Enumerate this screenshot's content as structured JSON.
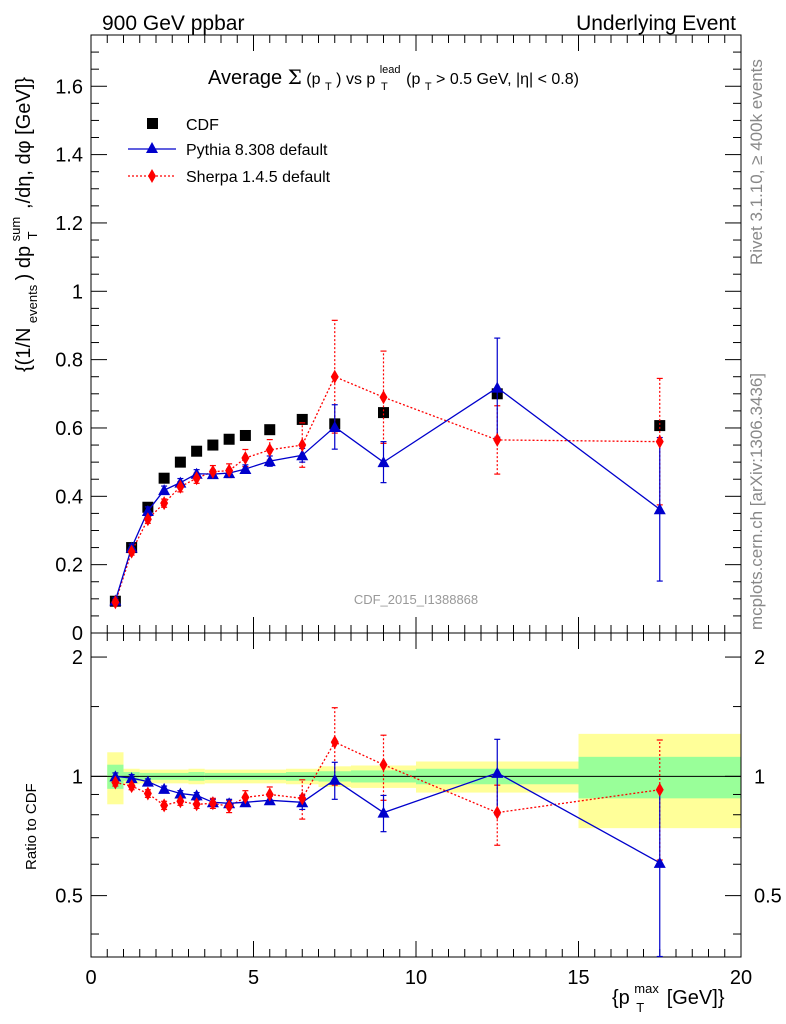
{
  "header": {
    "left": "900 GeV ppbar",
    "right": "Underlying Event"
  },
  "side_labels": {
    "rivet": "Rivet 3.1.10, ≥ 400k events",
    "mcplots": "mcplots.cern.ch [arXiv:1306.3436]"
  },
  "watermark": "CDF_2015_I1388868",
  "plot_title": {
    "prefix": "Average ",
    "sigma": "Σ",
    "pt_open": "(p",
    "pt_sub": "T",
    "pt_close": ")",
    "vs": " vs p",
    "lead_sup": "lead",
    "lead_sub": "T",
    "cut_open": " (p",
    "cut_sub": "T",
    "cut_rest": " > 0.5 GeV, |η| < 0.8)"
  },
  "y_label_main": {
    "p1": "{(1/N",
    "sub_events": "events",
    "p2": ") dp",
    "sup_sum": "sum",
    "sub_T": "T",
    "p3": ",/dη, dφ [GeV]}"
  },
  "y_label_ratio": "Ratio to CDF",
  "x_label": {
    "p1": "{p",
    "sup": "max",
    "sub": "T",
    "p2": " [GeV]}"
  },
  "colors": {
    "cdf": "#000000",
    "pythia": "#0000cc",
    "sherpa": "#ff0000",
    "band_inner": "#99ff99",
    "band_outer": "#ffff99",
    "watermark": "#999999",
    "side_text": "#888888"
  },
  "chart_data": [
    {
      "type": "scatter",
      "panel": "main",
      "xlim": [
        0,
        20
      ],
      "ylim": [
        0,
        1.75
      ],
      "x_ticks": [
        0,
        5,
        10,
        15,
        20
      ],
      "y_ticks": [
        0,
        0.2,
        0.4,
        0.6,
        0.8,
        1,
        1.2,
        1.4,
        1.6
      ],
      "y_tick_labels": [
        "0",
        "0.2",
        "0.4",
        "0.6",
        "0.8",
        "1",
        "1.2",
        "1.4",
        "1.6"
      ],
      "legend_position": "top-left",
      "series": [
        {
          "name": "CDF",
          "marker": "square",
          "x": [
            0.75,
            1.25,
            1.75,
            2.25,
            2.75,
            3.25,
            3.75,
            4.25,
            4.75,
            5.5,
            6.5,
            7.5,
            9.0,
            12.5,
            17.5
          ],
          "y": [
            0.093,
            0.25,
            0.368,
            0.453,
            0.5,
            0.532,
            0.55,
            0.567,
            0.578,
            0.595,
            0.625,
            0.612,
            0.645,
            0.7,
            0.607
          ]
        },
        {
          "name": "Pythia 8.308 default",
          "marker": "triangle",
          "line": "solid",
          "x": [
            0.75,
            1.25,
            1.75,
            2.25,
            2.75,
            3.25,
            3.75,
            4.25,
            4.75,
            5.5,
            6.5,
            7.5,
            9.0,
            12.5,
            17.5
          ],
          "y": [
            0.095,
            0.25,
            0.357,
            0.418,
            0.44,
            0.466,
            0.465,
            0.468,
            0.48,
            0.503,
            0.52,
            0.603,
            0.5,
            0.718,
            0.362
          ],
          "err": [
            0.008,
            0.01,
            0.012,
            0.012,
            0.012,
            0.012,
            0.012,
            0.012,
            0.012,
            0.015,
            0.02,
            0.065,
            0.06,
            0.145,
            0.21
          ]
        },
        {
          "name": "Sherpa 1.4.5 default",
          "marker": "diamond",
          "line": "dotted",
          "x": [
            0.75,
            1.25,
            1.75,
            2.25,
            2.75,
            3.25,
            3.75,
            4.25,
            4.75,
            5.5,
            6.5,
            7.5,
            9.0,
            12.5,
            17.5
          ],
          "y": [
            0.09,
            0.238,
            0.333,
            0.38,
            0.428,
            0.453,
            0.472,
            0.475,
            0.512,
            0.536,
            0.55,
            0.75,
            0.69,
            0.565,
            0.56
          ],
          "err": [
            0.008,
            0.01,
            0.012,
            0.012,
            0.015,
            0.015,
            0.018,
            0.02,
            0.025,
            0.03,
            0.065,
            0.165,
            0.135,
            0.1,
            0.185
          ]
        }
      ]
    },
    {
      "type": "scatter",
      "panel": "ratio",
      "xlim": [
        0,
        20
      ],
      "ylim": [
        0.35,
        2.3
      ],
      "y_scale": "log",
      "x_ticks": [
        0,
        5,
        10,
        15,
        20
      ],
      "x_tick_labels": [
        "0",
        "5",
        "10",
        "15",
        "20"
      ],
      "y_ticks": [
        0.5,
        1,
        2
      ],
      "y_tick_labels": [
        "0.5",
        "1",
        "2"
      ],
      "reference_line": 1,
      "bands": [
        {
          "x0": 0.5,
          "x1": 1.0,
          "inner": [
            0.93,
            1.07
          ],
          "outer": [
            0.85,
            1.15
          ]
        },
        {
          "x0": 1.0,
          "x1": 1.5,
          "inner": [
            0.975,
            1.025
          ],
          "outer": [
            0.955,
            1.045
          ]
        },
        {
          "x0": 1.5,
          "x1": 3.0,
          "inner": [
            0.98,
            1.02
          ],
          "outer": [
            0.96,
            1.04
          ]
        },
        {
          "x0": 3.0,
          "x1": 3.5,
          "inner": [
            0.975,
            1.025
          ],
          "outer": [
            0.955,
            1.045
          ]
        },
        {
          "x0": 3.5,
          "x1": 6.0,
          "inner": [
            0.98,
            1.02
          ],
          "outer": [
            0.96,
            1.04
          ]
        },
        {
          "x0": 6.0,
          "x1": 7.0,
          "inner": [
            0.975,
            1.025
          ],
          "outer": [
            0.955,
            1.045
          ]
        },
        {
          "x0": 7.0,
          "x1": 8.0,
          "inner": [
            0.97,
            1.03
          ],
          "outer": [
            0.94,
            1.06
          ]
        },
        {
          "x0": 8.0,
          "x1": 10.0,
          "inner": [
            0.965,
            1.035
          ],
          "outer": [
            0.935,
            1.065
          ]
        },
        {
          "x0": 10.0,
          "x1": 15.0,
          "inner": [
            0.955,
            1.045
          ],
          "outer": [
            0.91,
            1.09
          ]
        },
        {
          "x0": 15.0,
          "x1": 20.0,
          "inner": [
            0.88,
            1.12
          ],
          "outer": [
            0.74,
            1.28
          ]
        }
      ],
      "series": [
        {
          "name": "Pythia 8.308 default",
          "marker": "triangle",
          "line": "solid",
          "x": [
            0.75,
            1.25,
            1.75,
            2.25,
            2.75,
            3.25,
            3.75,
            4.25,
            4.75,
            5.5,
            6.5,
            7.5,
            9.0,
            12.5,
            17.5
          ],
          "y": [
            1.0,
            0.99,
            0.97,
            0.93,
            0.905,
            0.895,
            0.86,
            0.855,
            0.86,
            0.87,
            0.86,
            0.98,
            0.81,
            1.02,
            0.605
          ],
          "err": [
            0.02,
            0.02,
            0.015,
            0.015,
            0.015,
            0.015,
            0.015,
            0.02,
            0.02,
            0.02,
            0.035,
            0.105,
            0.085,
            0.22,
            0.32
          ]
        },
        {
          "name": "Sherpa 1.4.5 default",
          "marker": "diamond",
          "line": "dotted",
          "x": [
            0.75,
            1.25,
            1.75,
            2.25,
            2.75,
            3.25,
            3.75,
            4.25,
            4.75,
            5.5,
            6.5,
            7.5,
            9.0,
            12.5,
            17.5
          ],
          "y": [
            0.965,
            0.945,
            0.905,
            0.845,
            0.865,
            0.85,
            0.855,
            0.84,
            0.885,
            0.9,
            0.88,
            1.22,
            1.07,
            0.81,
            0.925
          ],
          "err": [
            0.02,
            0.02,
            0.02,
            0.02,
            0.02,
            0.02,
            0.025,
            0.03,
            0.035,
            0.04,
            0.1,
            0.27,
            0.2,
            0.14,
            0.31
          ]
        }
      ]
    }
  ]
}
